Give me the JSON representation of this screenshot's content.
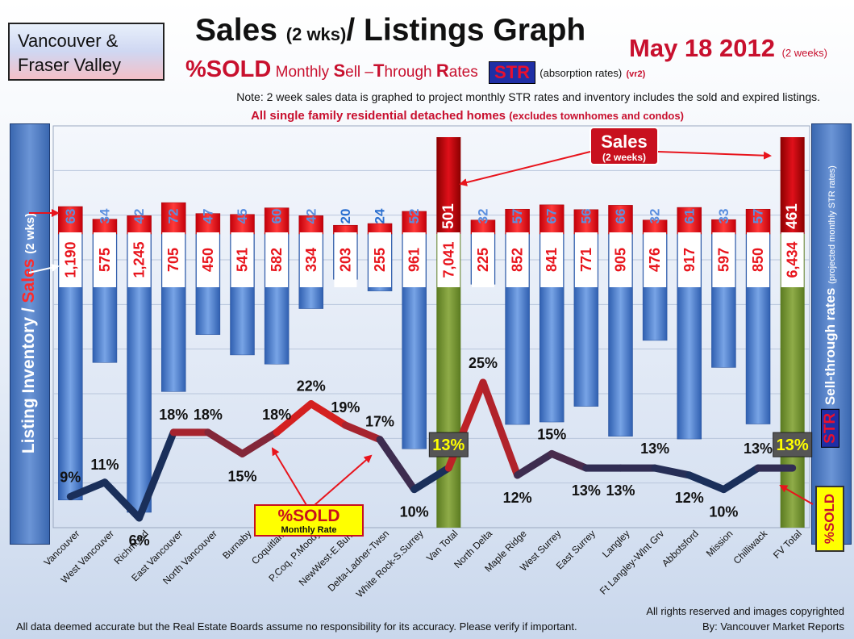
{
  "header": {
    "region_line1": "Vancouver &",
    "region_line2": "Fraser Valley",
    "title_main": "Sales",
    "title_small": "(2 wks)",
    "title_rest": "/ Listings Graph",
    "date": "May 18 2012",
    "date_note": "(2 weeks)",
    "subtitle_sold": "%SOLD",
    "subtitle_monthly": "Monthly",
    "subtitle_s": "S",
    "subtitle_ell": "ell –",
    "subtitle_t": "T",
    "subtitle_hrough": "hrough",
    "subtitle_r": "R",
    "subtitle_ates": "ates",
    "str_badge": "STR",
    "absorption": "(absorption rates)",
    "version": "(vr2)",
    "note": "Note: 2 week sales data is graphed to project monthly STR rates and inventory includes the sold and expired listings.",
    "scope_main": "All single family residential detached homes",
    "scope_small": "(excludes townhomes and condos)"
  },
  "side_labels": {
    "left_inventory": "Listing Inventory /",
    "left_sales": "Sales",
    "left_small": "(2 wks)",
    "right_sell": "Sell-through rates",
    "right_small": "(projected monthly STR rates)",
    "right_str": "STR",
    "sold_badge": "%SOLD"
  },
  "annotations": {
    "sales_callout_line1": "Sales",
    "sales_callout_line2": "(2 weeks)",
    "sold_callout_line1": "%SOLD",
    "sold_callout_line2": "Monthly Rate"
  },
  "footer": {
    "disclaimer": "All data deemed accurate but the Real Estate Boards assume no responsibility for its accuracy.  Please verify if important.",
    "copyright": "All rights reserved and  images copyrighted",
    "byline": "By: Vancouver Market Reports"
  },
  "colors": {
    "sales_bar": "#e8141c",
    "inventory_bar": "#4a7fd0",
    "total_bar": "#6f8f2c",
    "total_sales_bar": "#b00000",
    "str_line_low": "#1a2f5a",
    "str_line_high": "#d42020"
  },
  "chart_data": {
    "type": "bar",
    "categories": [
      "Vancouver",
      "West Vancouver",
      "Richmond",
      "East Vancouver",
      "North Vancouver",
      "Burnaby",
      "Coquitlam",
      "P.Coq, P.Moody",
      "NewWest-E.Burn",
      "Delta-Ladner-Twsn",
      "White Rock-S.Surrey",
      "Van Total",
      "North Delta",
      "Maple Ridge",
      "West Surrey",
      "East Surrey",
      "Langley",
      "Ft Langley-Wlnt Grv",
      "Abbotsford",
      "Mission",
      "Chilliwack",
      "FV Total"
    ],
    "series": [
      {
        "name": "Sales",
        "values": [
          63,
          34,
          42,
          72,
          47,
          45,
          60,
          42,
          20,
          24,
          52,
          501,
          32,
          57,
          67,
          56,
          66,
          32,
          61,
          33,
          57,
          461
        ],
        "labels": [
          "63",
          "34",
          "42",
          "72",
          "47",
          "45",
          "60",
          "42",
          "20",
          "24",
          "52",
          "501",
          "32",
          "57",
          "67",
          "56",
          "66",
          "32",
          "61",
          "33",
          "57",
          "461"
        ]
      },
      {
        "name": "Listing Inventory",
        "values": [
          1190,
          575,
          1245,
          705,
          450,
          541,
          582,
          334,
          203,
          255,
          961,
          7041,
          225,
          852,
          841,
          771,
          905,
          476,
          917,
          597,
          850,
          6434
        ],
        "labels": [
          "1,190",
          "575",
          "1,245",
          "705",
          "450",
          "541",
          "582",
          "334",
          "203",
          "255",
          "961",
          "7,041",
          "225",
          "852",
          "841",
          "771",
          "905",
          "476",
          "917",
          "597",
          "850",
          "6,434"
        ]
      },
      {
        "name": "%SOLD",
        "values": [
          9,
          11,
          6,
          18,
          18,
          15,
          18,
          22,
          19,
          17,
          10,
          13,
          25,
          12,
          15,
          13,
          13,
          13,
          12,
          10,
          13,
          13
        ],
        "labels": [
          "9%",
          "11%",
          "6%",
          "18%",
          "18%",
          "15%",
          "18%",
          "22%",
          "19%",
          "17%",
          "10%",
          "13%",
          "25%",
          "12%",
          "15%",
          "13%",
          "13%",
          "13%",
          "12%",
          "10%",
          "13%",
          "13%"
        ]
      }
    ],
    "totals": [
      "Van Total",
      "FV Total"
    ]
  }
}
